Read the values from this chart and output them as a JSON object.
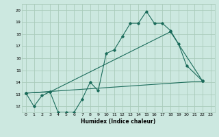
{
  "title": "",
  "xlabel": "Humidex (Indice chaleur)",
  "background_color": "#cce8e0",
  "grid_color": "#aaccbb",
  "line_color": "#1a6b5a",
  "xlim": [
    -0.5,
    23.5
  ],
  "ylim": [
    11.5,
    20.5
  ],
  "yticks": [
    12,
    13,
    14,
    15,
    16,
    17,
    18,
    19,
    20
  ],
  "xticks": [
    0,
    1,
    2,
    3,
    4,
    5,
    6,
    7,
    8,
    9,
    10,
    11,
    12,
    13,
    14,
    15,
    16,
    17,
    18,
    19,
    20,
    21,
    22,
    23
  ],
  "curve1_x": [
    0,
    1,
    2,
    3,
    4,
    5,
    6,
    7,
    8,
    9,
    10,
    11,
    12,
    13,
    14,
    15,
    16,
    17,
    18,
    19,
    20,
    22
  ],
  "curve1_y": [
    13.1,
    12.0,
    12.9,
    13.2,
    11.5,
    11.5,
    11.5,
    12.6,
    14.0,
    13.3,
    16.4,
    16.7,
    17.8,
    18.9,
    18.9,
    19.9,
    18.9,
    18.9,
    18.3,
    17.2,
    15.4,
    14.1
  ],
  "curve2_x": [
    0,
    3,
    18,
    22
  ],
  "curve2_y": [
    13.1,
    13.2,
    18.2,
    14.1
  ],
  "curve3_x": [
    0,
    22
  ],
  "curve3_y": [
    13.1,
    14.1
  ]
}
